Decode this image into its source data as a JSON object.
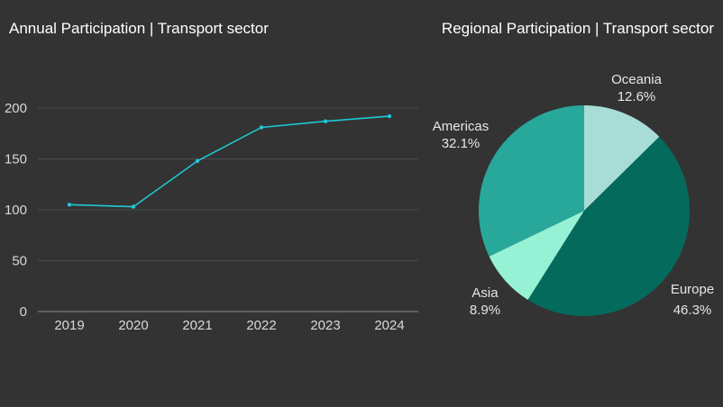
{
  "line_chart": {
    "title": "Annual Participation | Transport sector"
  },
  "pie_chart": {
    "title": "Regional Participation | Transport sector"
  },
  "colors": {
    "background": "#333333",
    "line": "#1ec8d8",
    "grid": "#4a4a4a",
    "oceania": "#a8dcd7",
    "europe": "#046b5c",
    "asia": "#97f1d5",
    "americas": "#27a89a"
  },
  "chart_data": [
    {
      "type": "line",
      "title": "Annual Participation | Transport sector",
      "xlabel": "",
      "ylabel": "",
      "x": [
        "2019",
        "2020",
        "2021",
        "2022",
        "2023",
        "2024"
      ],
      "values": [
        105,
        103,
        148,
        181,
        187,
        192
      ],
      "ylim": [
        0,
        200
      ],
      "yticks": [
        0,
        50,
        100,
        150,
        200
      ],
      "grid": true,
      "legend": "none"
    },
    {
      "type": "pie",
      "title": "Regional Participation | Transport sector",
      "slices": [
        {
          "label": "Oceania",
          "value": 12.6,
          "display": "12.6%",
          "color": "#a8dcd7"
        },
        {
          "label": "Europe",
          "value": 46.3,
          "display": "46.3%",
          "color": "#046b5c"
        },
        {
          "label": "Asia",
          "value": 8.9,
          "display": "8.9%",
          "color": "#97f1d5"
        },
        {
          "label": "Americas",
          "value": 32.1,
          "display": "32.1%",
          "color": "#27a89a"
        }
      ],
      "start": "top",
      "direction": "clockwise"
    }
  ]
}
